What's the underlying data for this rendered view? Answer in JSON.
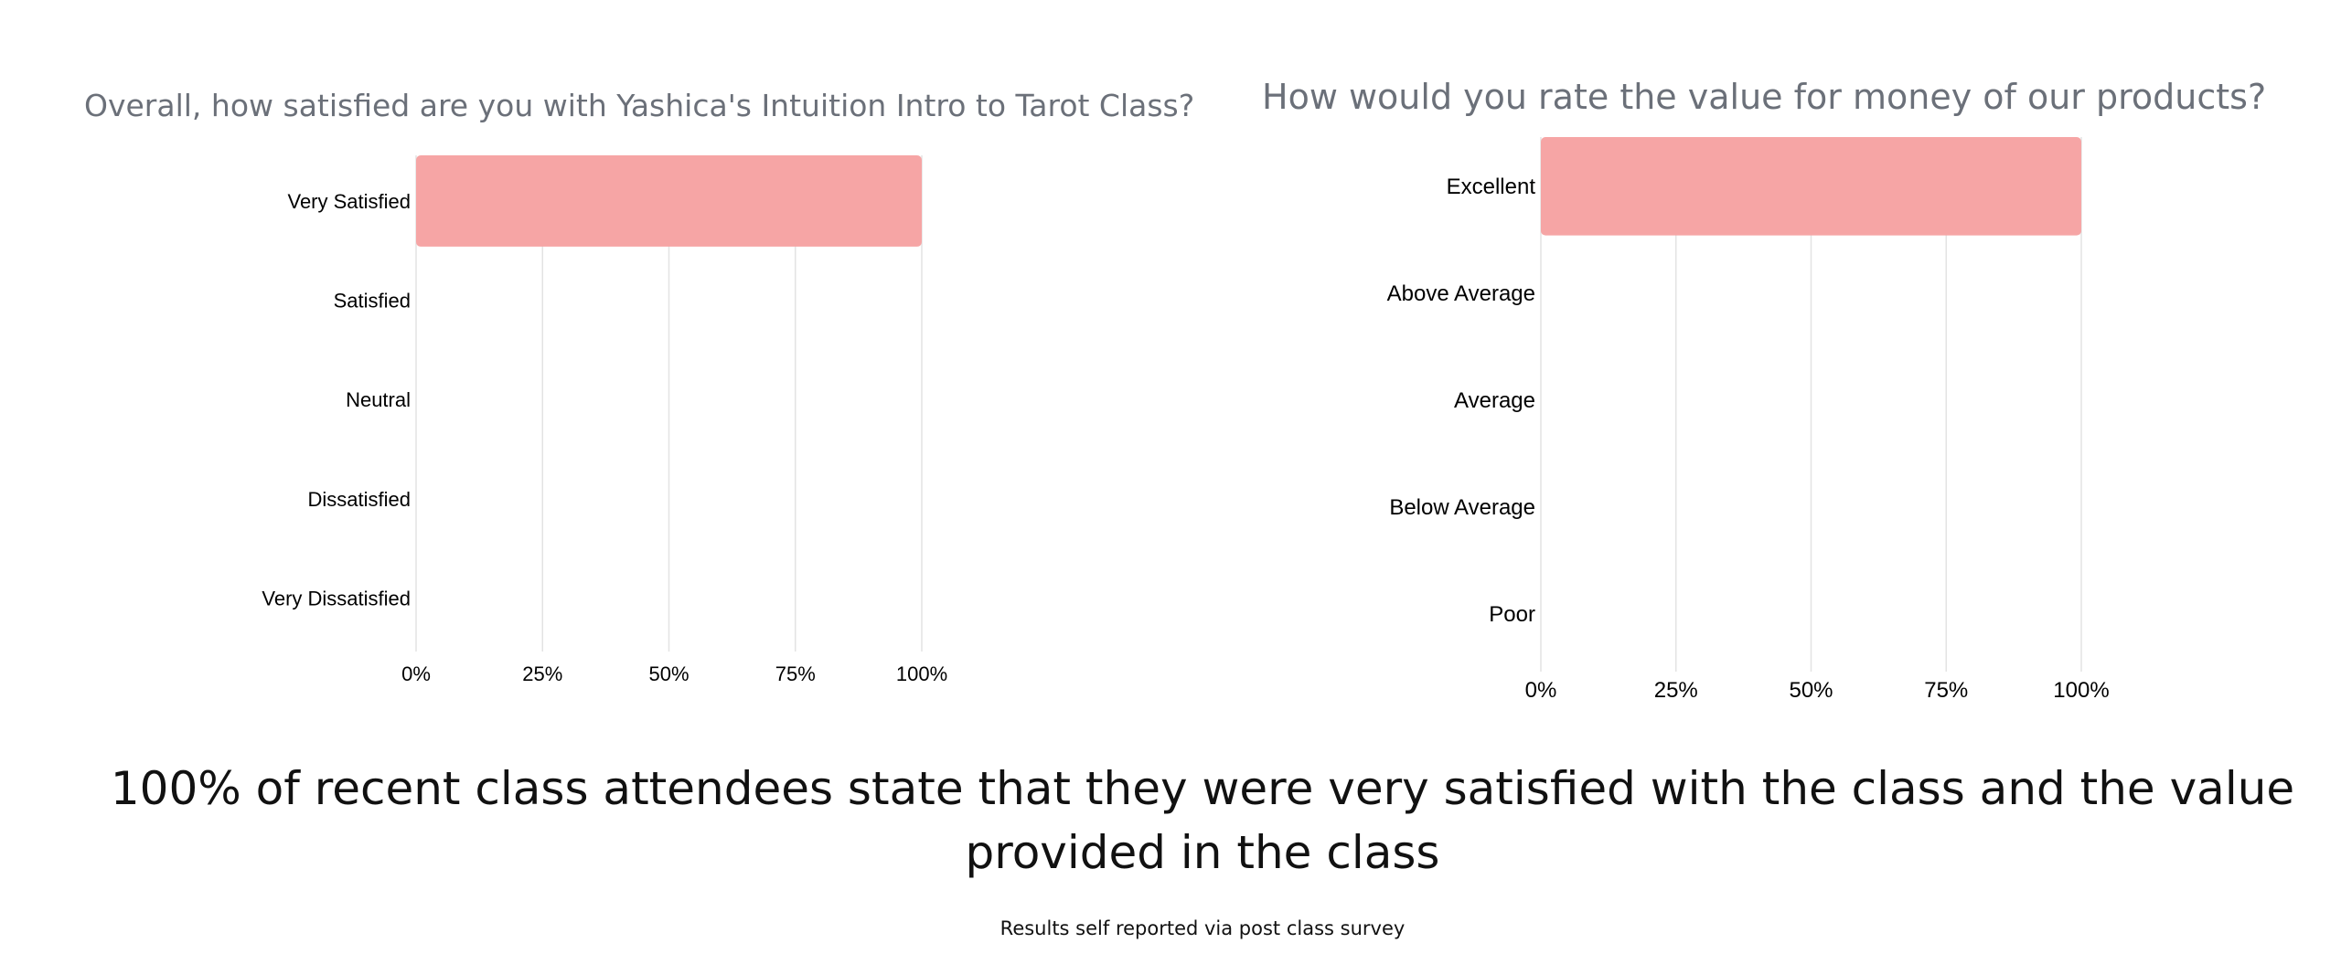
{
  "chart_data": [
    {
      "type": "bar",
      "orientation": "horizontal",
      "title": "Overall, how satisfied are you with Yashica's Intuition Intro to Tarot Class?",
      "categories": [
        "Very Satisfied",
        "Satisfied",
        "Neutral",
        "Dissatisfied",
        "Very Dissatisfied"
      ],
      "values": [
        100,
        0,
        0,
        0,
        0
      ],
      "xlim": [
        0,
        100
      ],
      "xticks": [
        "0%",
        "25%",
        "50%",
        "75%",
        "100%"
      ],
      "grid": "vertical",
      "bar_color": "#f6a5a5"
    },
    {
      "type": "bar",
      "orientation": "horizontal",
      "title": "How would you rate the value for money of our products?",
      "categories": [
        "Excellent",
        "Above Average",
        "Average",
        "Below Average",
        "Poor"
      ],
      "values": [
        100,
        0,
        0,
        0,
        0
      ],
      "xlim": [
        0,
        100
      ],
      "xticks": [
        "0%",
        "25%",
        "50%",
        "75%",
        "100%"
      ],
      "grid": "vertical",
      "bar_color": "#f6a5a5"
    }
  ],
  "headline": "100% of recent class attendees state that they were very satisfied with the class and the value provided in the class",
  "footnote": "Results self reported via post class survey"
}
